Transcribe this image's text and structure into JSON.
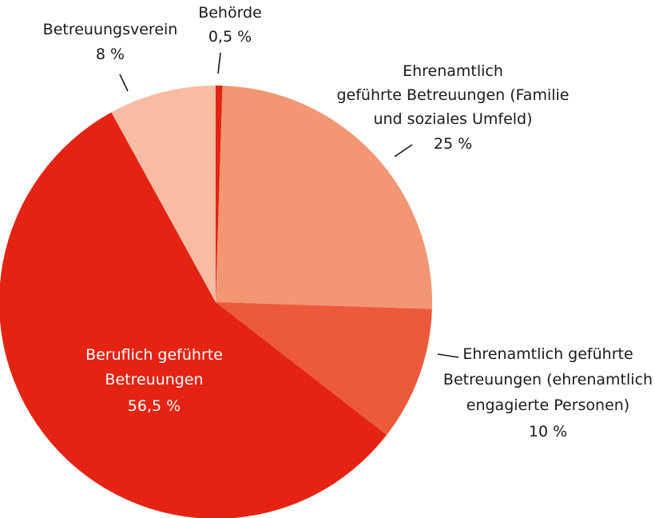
{
  "chart_data": {
    "type": "pie",
    "title": "",
    "unit": "%",
    "start_angle_deg": 0,
    "direction": "clockwise",
    "legend": "none",
    "slices": [
      {
        "label": [
          "Behörde"
        ],
        "value_text": "0,5 %",
        "value": 0.5,
        "color": "#e42313"
      },
      {
        "label": [
          "Ehrenamtlich",
          "geführte Betreuungen (Familie",
          "und soziales Umfeld)"
        ],
        "value_text": "25 %",
        "value": 25,
        "color": "#f29673"
      },
      {
        "label": [
          "Ehrenamtlich geführte",
          "Betreuungen (ehrenamtlich",
          "engagierte Personen)"
        ],
        "value_text": "10 %",
        "value": 10,
        "color": "#ec5a3b"
      },
      {
        "label": [
          "Beruflich geführte",
          "Betreuungen"
        ],
        "value_text": "56,5 %",
        "value": 56.5,
        "color": "#e42313"
      },
      {
        "label": [
          "Betreuungsverein"
        ],
        "value_text": "8 %",
        "value": 8,
        "color": "#f8bca3"
      }
    ]
  }
}
